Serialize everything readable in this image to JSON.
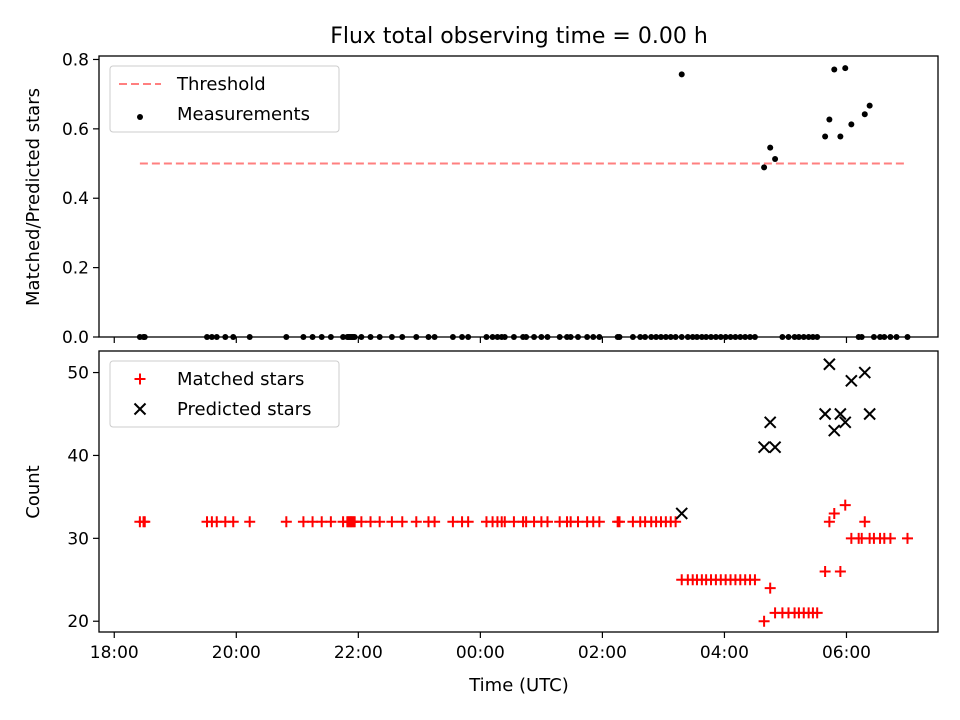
{
  "chart_data": {
    "type": "scatter",
    "title": "Flux total observing time = 0.00 h",
    "xlabel": "Time (UTC)",
    "x_ticks": [
      "18:00",
      "20:00",
      "22:00",
      "00:00",
      "02:00",
      "04:00",
      "06:00"
    ],
    "x_tick_hours": [
      0,
      2,
      4,
      6,
      8,
      10,
      12
    ],
    "x_range_hours": [
      -0.25,
      13.5
    ],
    "x_note": "x values are hours elapsed since 18:00 UTC",
    "panels": [
      {
        "ylabel": "Matched/Predicted stars",
        "ylim": [
          0,
          0.81
        ],
        "y_ticks": [
          0.0,
          0.2,
          0.4,
          0.6,
          0.8
        ],
        "legend_position": "upper-left",
        "series": [
          {
            "name": "Threshold",
            "kind": "dashed-line",
            "color": "#ff7f7f",
            "x": [
              0.42,
              12.95
            ],
            "y": [
              0.5,
              0.5
            ]
          },
          {
            "name": "Measurements",
            "kind": "dots",
            "color": "#000000",
            "points": [
              [
                0.42,
                0
              ],
              [
                0.48,
                0
              ],
              [
                0.5,
                0
              ],
              [
                1.52,
                0
              ],
              [
                1.6,
                0
              ],
              [
                1.68,
                0
              ],
              [
                1.82,
                0
              ],
              [
                1.95,
                0
              ],
              [
                2.22,
                0
              ],
              [
                2.82,
                0
              ],
              [
                3.1,
                0
              ],
              [
                3.25,
                0
              ],
              [
                3.4,
                0
              ],
              [
                3.55,
                0
              ],
              [
                3.75,
                0
              ],
              [
                3.82,
                0
              ],
              [
                3.84,
                0
              ],
              [
                3.86,
                0
              ],
              [
                3.88,
                0
              ],
              [
                3.9,
                0
              ],
              [
                3.92,
                0
              ],
              [
                3.94,
                0
              ],
              [
                4.05,
                0
              ],
              [
                4.2,
                0
              ],
              [
                4.35,
                0
              ],
              [
                4.55,
                0
              ],
              [
                4.72,
                0
              ],
              [
                4.95,
                0
              ],
              [
                5.15,
                0
              ],
              [
                5.25,
                0
              ],
              [
                5.55,
                0
              ],
              [
                5.7,
                0
              ],
              [
                5.8,
                0
              ],
              [
                6.1,
                0
              ],
              [
                6.2,
                0
              ],
              [
                6.28,
                0
              ],
              [
                6.35,
                0
              ],
              [
                6.4,
                0
              ],
              [
                6.55,
                0
              ],
              [
                6.7,
                0
              ],
              [
                6.75,
                0
              ],
              [
                6.88,
                0
              ],
              [
                7.0,
                0
              ],
              [
                7.1,
                0
              ],
              [
                7.3,
                0
              ],
              [
                7.42,
                0
              ],
              [
                7.48,
                0
              ],
              [
                7.6,
                0
              ],
              [
                7.75,
                0
              ],
              [
                7.85,
                0
              ],
              [
                7.95,
                0
              ],
              [
                8.25,
                0
              ],
              [
                8.28,
                0
              ],
              [
                8.5,
                0
              ],
              [
                8.62,
                0
              ],
              [
                8.7,
                0
              ],
              [
                8.8,
                0
              ],
              [
                8.88,
                0
              ],
              [
                8.96,
                0
              ],
              [
                9.04,
                0
              ],
              [
                9.12,
                0
              ],
              [
                9.2,
                0
              ],
              [
                9.3,
                0
              ],
              [
                9.4,
                0
              ],
              [
                9.48,
                0
              ],
              [
                9.55,
                0
              ],
              [
                9.63,
                0
              ],
              [
                9.7,
                0
              ],
              [
                9.78,
                0
              ],
              [
                9.86,
                0
              ],
              [
                9.94,
                0
              ],
              [
                10.02,
                0
              ],
              [
                10.1,
                0
              ],
              [
                10.18,
                0
              ],
              [
                10.26,
                0
              ],
              [
                10.34,
                0
              ],
              [
                10.42,
                0
              ],
              [
                10.5,
                0
              ],
              [
                10.95,
                0
              ],
              [
                11.05,
                0
              ],
              [
                11.15,
                0
              ],
              [
                11.22,
                0
              ],
              [
                11.3,
                0
              ],
              [
                11.38,
                0
              ],
              [
                11.45,
                0
              ],
              [
                11.52,
                0
              ],
              [
                12.2,
                0
              ],
              [
                12.25,
                0
              ],
              [
                12.45,
                0
              ],
              [
                12.55,
                0
              ],
              [
                12.62,
                0
              ],
              [
                12.72,
                0
              ],
              [
                12.82,
                0
              ],
              [
                13.0,
                0
              ],
              [
                9.3,
                0.757
              ],
              [
                10.65,
                0.489
              ],
              [
                10.75,
                0.546
              ],
              [
                10.83,
                0.513
              ],
              [
                11.65,
                0.578
              ],
              [
                11.72,
                0.627
              ],
              [
                11.8,
                0.771
              ],
              [
                11.9,
                0.578
              ],
              [
                11.98,
                0.775
              ],
              [
                12.08,
                0.613
              ],
              [
                12.3,
                0.642
              ],
              [
                12.38,
                0.667
              ]
            ]
          }
        ]
      },
      {
        "ylabel": "Count",
        "ylim": [
          18.7,
          52.6
        ],
        "y_ticks": [
          20,
          30,
          40,
          50
        ],
        "legend_position": "upper-left",
        "series": [
          {
            "name": "Matched stars",
            "kind": "plus",
            "color": "#ff0000",
            "points": [
              [
                0.42,
                32
              ],
              [
                0.48,
                32
              ],
              [
                0.5,
                32
              ],
              [
                1.52,
                32
              ],
              [
                1.6,
                32
              ],
              [
                1.68,
                32
              ],
              [
                1.82,
                32
              ],
              [
                1.95,
                32
              ],
              [
                2.22,
                32
              ],
              [
                2.82,
                32
              ],
              [
                3.1,
                32
              ],
              [
                3.25,
                32
              ],
              [
                3.4,
                32
              ],
              [
                3.55,
                32
              ],
              [
                3.75,
                32
              ],
              [
                3.82,
                32
              ],
              [
                3.84,
                32
              ],
              [
                3.86,
                32
              ],
              [
                3.88,
                32
              ],
              [
                3.9,
                32
              ],
              [
                3.92,
                32
              ],
              [
                3.94,
                32
              ],
              [
                4.05,
                32
              ],
              [
                4.2,
                32
              ],
              [
                4.35,
                32
              ],
              [
                4.55,
                32
              ],
              [
                4.72,
                32
              ],
              [
                4.95,
                32
              ],
              [
                5.15,
                32
              ],
              [
                5.25,
                32
              ],
              [
                5.55,
                32
              ],
              [
                5.7,
                32
              ],
              [
                5.8,
                32
              ],
              [
                6.1,
                32
              ],
              [
                6.2,
                32
              ],
              [
                6.28,
                32
              ],
              [
                6.35,
                32
              ],
              [
                6.4,
                32
              ],
              [
                6.55,
                32
              ],
              [
                6.7,
                32
              ],
              [
                6.75,
                32
              ],
              [
                6.88,
                32
              ],
              [
                7.0,
                32
              ],
              [
                7.1,
                32
              ],
              [
                7.3,
                32
              ],
              [
                7.42,
                32
              ],
              [
                7.48,
                32
              ],
              [
                7.6,
                32
              ],
              [
                7.75,
                32
              ],
              [
                7.85,
                32
              ],
              [
                7.95,
                32
              ],
              [
                8.25,
                32
              ],
              [
                8.28,
                32
              ],
              [
                8.5,
                32
              ],
              [
                8.62,
                32
              ],
              [
                8.7,
                32
              ],
              [
                8.8,
                32
              ],
              [
                8.88,
                32
              ],
              [
                8.96,
                32
              ],
              [
                9.04,
                32
              ],
              [
                9.12,
                32
              ],
              [
                9.2,
                32
              ],
              [
                9.3,
                25
              ],
              [
                9.4,
                25
              ],
              [
                9.48,
                25
              ],
              [
                9.55,
                25
              ],
              [
                9.63,
                25
              ],
              [
                9.7,
                25
              ],
              [
                9.78,
                25
              ],
              [
                9.86,
                25
              ],
              [
                9.94,
                25
              ],
              [
                10.02,
                25
              ],
              [
                10.1,
                25
              ],
              [
                10.18,
                25
              ],
              [
                10.26,
                25
              ],
              [
                10.34,
                25
              ],
              [
                10.42,
                25
              ],
              [
                10.5,
                25
              ],
              [
                10.65,
                20
              ],
              [
                10.75,
                24
              ],
              [
                10.83,
                21
              ],
              [
                10.95,
                21
              ],
              [
                11.05,
                21
              ],
              [
                11.15,
                21
              ],
              [
                11.22,
                21
              ],
              [
                11.3,
                21
              ],
              [
                11.38,
                21
              ],
              [
                11.45,
                21
              ],
              [
                11.52,
                21
              ],
              [
                11.65,
                26
              ],
              [
                11.72,
                32
              ],
              [
                11.8,
                33
              ],
              [
                11.9,
                26
              ],
              [
                11.98,
                34
              ],
              [
                12.08,
                30
              ],
              [
                12.2,
                30
              ],
              [
                12.25,
                30
              ],
              [
                12.3,
                32
              ],
              [
                12.38,
                30
              ],
              [
                12.45,
                30
              ],
              [
                12.55,
                30
              ],
              [
                12.62,
                30
              ],
              [
                12.72,
                30
              ],
              [
                13.0,
                30
              ]
            ]
          },
          {
            "name": "Predicted stars",
            "kind": "cross",
            "color": "#000000",
            "points": [
              [
                9.3,
                33
              ],
              [
                10.65,
                41
              ],
              [
                10.75,
                44
              ],
              [
                10.83,
                41
              ],
              [
                11.65,
                45
              ],
              [
                11.72,
                51
              ],
              [
                11.8,
                43
              ],
              [
                11.9,
                45
              ],
              [
                11.98,
                44
              ],
              [
                12.08,
                49
              ],
              [
                12.3,
                50
              ],
              [
                12.38,
                45
              ]
            ]
          }
        ]
      }
    ]
  }
}
